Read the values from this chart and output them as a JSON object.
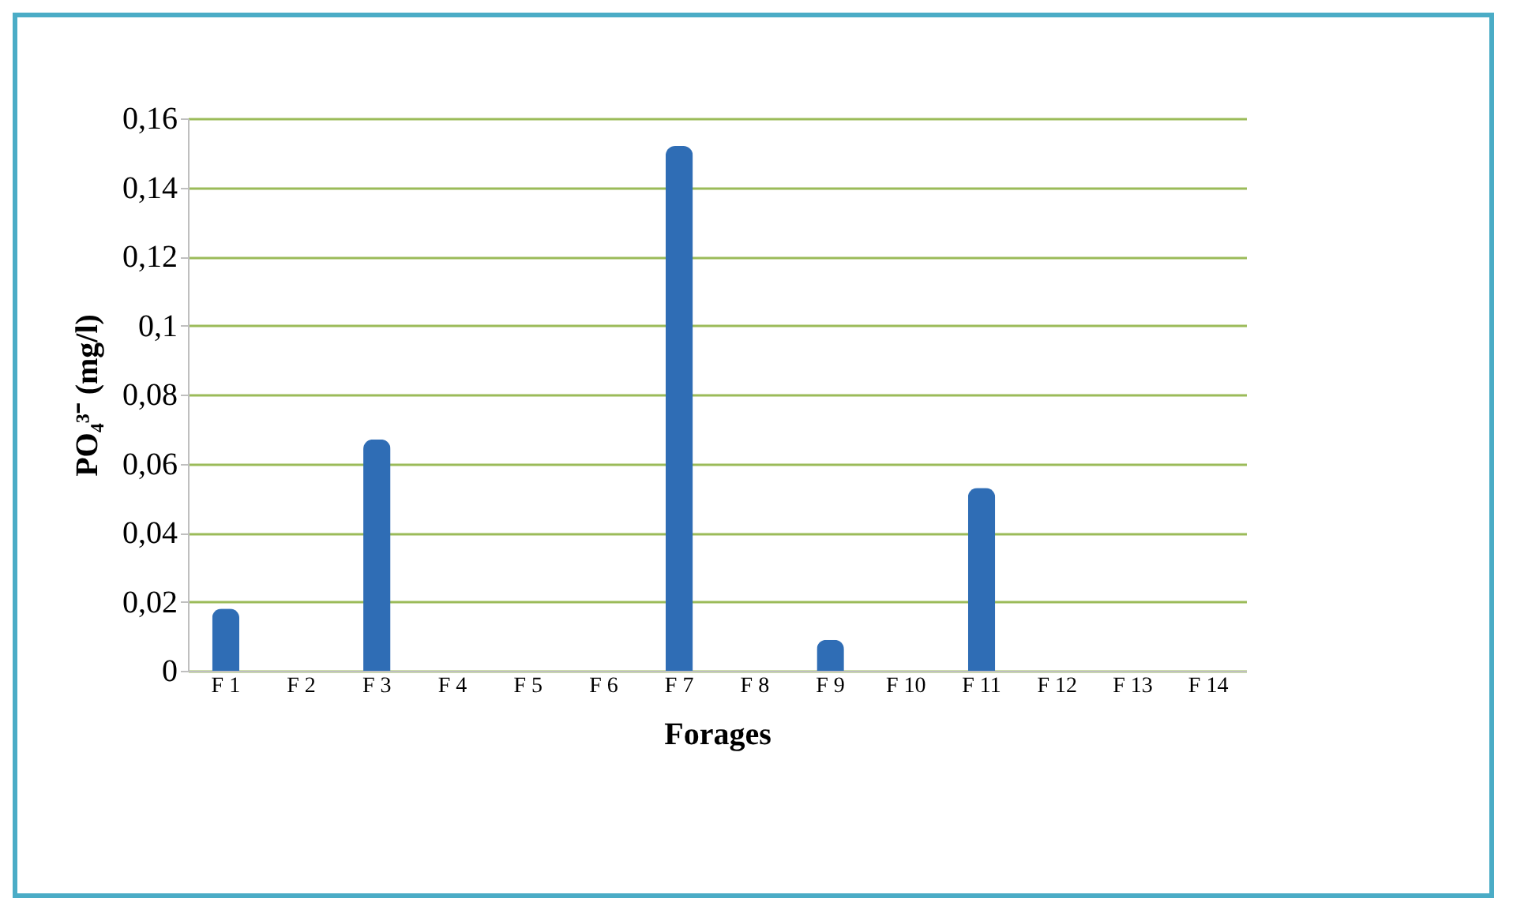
{
  "chart_data": {
    "type": "bar",
    "xlabel": "Forages",
    "ylabel": "PO₄³⁻ (mg/l)",
    "categories": [
      "F 1",
      "F 2",
      "F 3",
      "F 4",
      "F 5",
      "F 6",
      "F 7",
      "F 8",
      "F 9",
      "F 10",
      "F 11",
      "F 12",
      "F 13",
      "F 14"
    ],
    "values": [
      0.018,
      0,
      0.067,
      0,
      0,
      0,
      0.152,
      0,
      0.009,
      0,
      0.053,
      0,
      0,
      0
    ],
    "color": "#2f6db5",
    "ylim": [
      0,
      0.16
    ],
    "yticks": [
      0,
      {
        "value": 0.02,
        "label": "0,02"
      },
      {
        "value": 0.04,
        "label": "0,04"
      },
      {
        "value": 0.06,
        "label": "0,06"
      },
      {
        "value": 0.08,
        "label": "0,08"
      },
      {
        "value": 0.1,
        "label": "0,1"
      },
      {
        "value": 0.12,
        "label": "0,12"
      },
      {
        "value": 0.14,
        "label": "0,14"
      },
      {
        "value": 0.16,
        "label": "0,16"
      }
    ],
    "grid": "y"
  }
}
